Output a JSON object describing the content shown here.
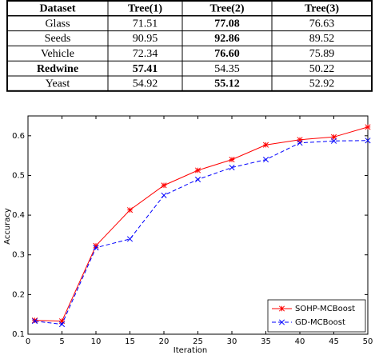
{
  "table": {
    "header": [
      "Dataset",
      "Tree(1)",
      "Tree(2)",
      "Tree(3)"
    ],
    "rows": [
      [
        "Glass",
        "71.51",
        "77.08",
        "76.63"
      ],
      [
        "Seeds",
        "90.95",
        "92.86",
        "89.52"
      ],
      [
        "Vehicle",
        "72.34",
        "76.60",
        "75.89"
      ],
      [
        "Redwine",
        "57.41",
        "54.35",
        "50.22"
      ],
      [
        "Yeast",
        "54.92",
        "55.12",
        "52.92"
      ]
    ],
    "bold_cells": [
      [
        0,
        2
      ],
      [
        1,
        2
      ],
      [
        2,
        2
      ],
      [
        3,
        0
      ],
      [
        3,
        1
      ],
      [
        4,
        2
      ]
    ]
  },
  "chart_data": {
    "type": "line",
    "x_label": "Iteration",
    "y_label": "Accuracy",
    "x": [
      1,
      5,
      10,
      15,
      20,
      25,
      30,
      35,
      40,
      45,
      50
    ],
    "series": [
      {
        "name": "SOHP-MCBoost",
        "color": "#ff0000",
        "line_style": "solid",
        "marker": "star",
        "values": [
          0.135,
          0.133,
          0.323,
          0.413,
          0.475,
          0.513,
          0.54,
          0.577,
          0.59,
          0.597,
          0.622
        ]
      },
      {
        "name": "GD-MCBoost",
        "color": "#0000ff",
        "line_style": "dashed",
        "marker": "x",
        "values": [
          0.133,
          0.125,
          0.318,
          0.34,
          0.45,
          0.49,
          0.52,
          0.54,
          0.582,
          0.587,
          0.588
        ]
      }
    ],
    "xlim": [
      0,
      50
    ],
    "xticks": [
      0,
      5,
      10,
      15,
      20,
      25,
      30,
      35,
      40,
      45,
      50
    ],
    "ylim": [
      0.1,
      0.65
    ],
    "yticks": [
      0.1,
      0.2,
      0.3,
      0.4,
      0.5,
      0.6
    ],
    "legend": "lower right"
  }
}
